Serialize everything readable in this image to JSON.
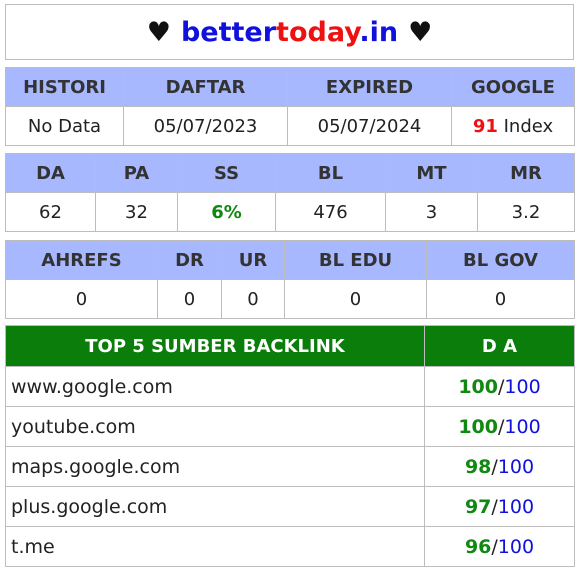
{
  "header": {
    "heart_left": "♥",
    "domain_part1": "better",
    "domain_part2": "today",
    "domain_part3": ".in",
    "heart_right": "♥"
  },
  "table1": {
    "headers": [
      "HISTORI",
      "DAFTAR",
      "EXPIRED",
      "GOOGLE"
    ],
    "values": {
      "histori": "No Data",
      "daftar": "05/07/2023",
      "expired": "05/07/2024",
      "google_count": "91",
      "google_suffix": " Index"
    }
  },
  "table2": {
    "headers": [
      "DA",
      "PA",
      "SS",
      "BL",
      "MT",
      "MR"
    ],
    "values": [
      "62",
      "32",
      "6%",
      "476",
      "3",
      "3.2"
    ]
  },
  "table3": {
    "headers": [
      "AHREFS",
      "DR",
      "UR",
      "BL EDU",
      "BL GOV"
    ],
    "values": [
      "0",
      "0",
      "0",
      "0",
      "0"
    ]
  },
  "backlinks": {
    "header_left": "TOP 5 SUMBER BACKLINK",
    "header_right": "D A",
    "separator": "/",
    "rows": [
      {
        "site": "www.google.com",
        "da": "100",
        "max": "100"
      },
      {
        "site": "youtube.com",
        "da": "100",
        "max": "100"
      },
      {
        "site": "maps.google.com",
        "da": "98",
        "max": "100"
      },
      {
        "site": "plus.google.com",
        "da": "97",
        "max": "100"
      },
      {
        "site": "t.me",
        "da": "96",
        "max": "100"
      }
    ]
  },
  "colors": {
    "header_blue": "#a8b8ff",
    "brand_blue": "#1111dd",
    "brand_red": "#ee1111",
    "green_header": "#0a7d0a",
    "green_text": "#118811"
  }
}
